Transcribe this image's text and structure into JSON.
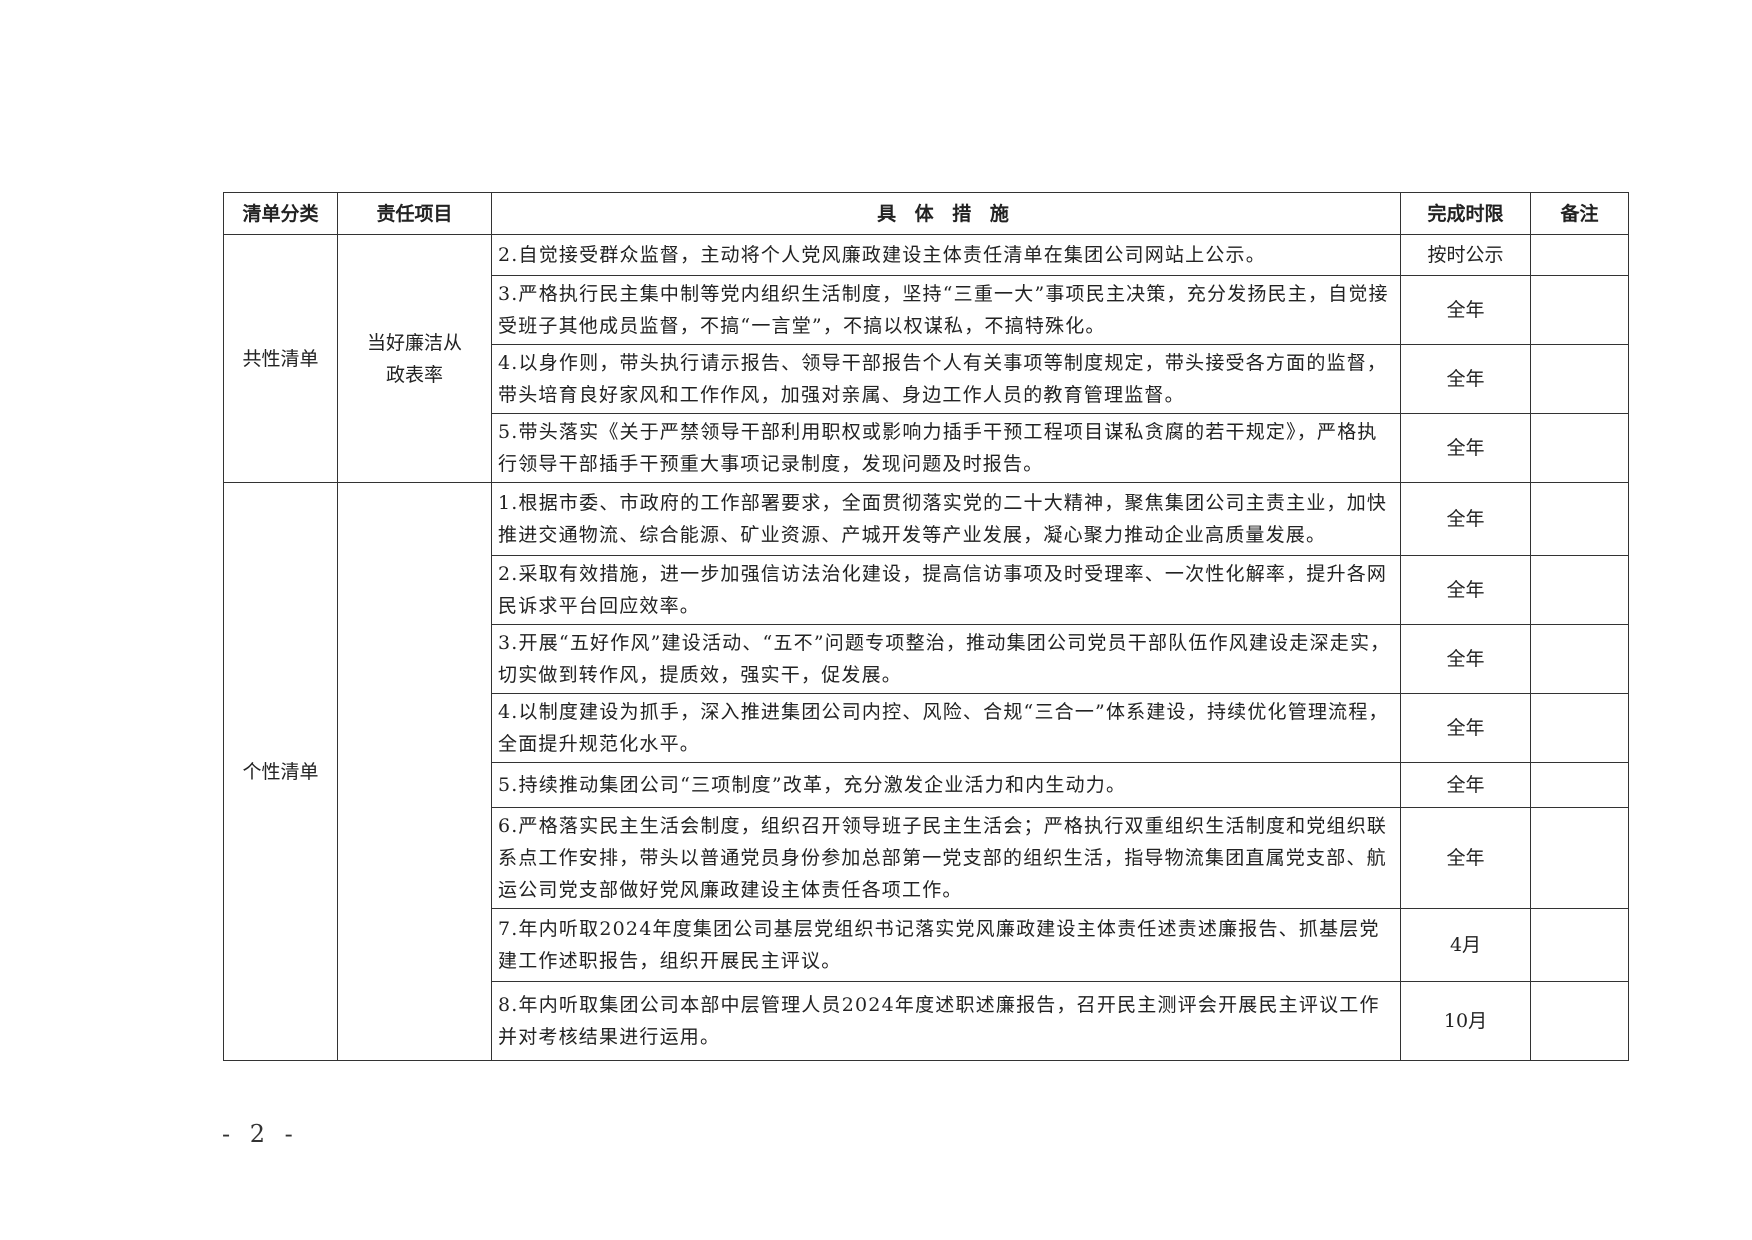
{
  "table": {
    "headers": [
      "清单分类",
      "责任项目",
      "具 体 措 施",
      "完成时限",
      "备注"
    ],
    "groups": [
      {
        "category": "共性清单",
        "project": "当好廉洁从政表率",
        "rows": [
          {
            "measure": "2.自觉接受群众监督，主动将个人党风廉政建设主体责任清单在集团公司网站上公示。",
            "deadline": "按时公示",
            "note": ""
          },
          {
            "measure": "3.严格执行民主集中制等党内组织生活制度，坚持“三重一大”事项民主决策，充分发扬民主，自觉接受班子其他成员监督，不搞“一言堂”，不搞以权谋私，不搞特殊化。",
            "deadline": "全年",
            "note": ""
          },
          {
            "measure": "4.以身作则，带头执行请示报告、领导干部报告个人有关事项等制度规定，带头接受各方面的监督，带头培育良好家风和工作作风，加强对亲属、身边工作人员的教育管理监督。",
            "deadline": "全年",
            "note": ""
          },
          {
            "measure": "5.带头落实《关于严禁领导干部利用职权或影响力插手干预工程项目谋私贪腐的若干规定》，严格执行领导干部插手干预重大事项记录制度，发现问题及时报告。",
            "deadline": "全年",
            "note": ""
          }
        ]
      },
      {
        "category": "个性清单",
        "project": "",
        "rows": [
          {
            "measure": "1.根据市委、市政府的工作部署要求，全面贯彻落实党的二十大精神，聚焦集团公司主责主业，加快推进交通物流、综合能源、矿业资源、产城开发等产业发展，凝心聚力推动企业高质量发展。",
            "deadline": "全年",
            "note": ""
          },
          {
            "measure": "2.采取有效措施，进一步加强信访法治化建设，提高信访事项及时受理率、一次性化解率，提升各网民诉求平台回应效率。",
            "deadline": "全年",
            "note": ""
          },
          {
            "measure": "3.开展“五好作风”建设活动、“五不”问题专项整治，推动集团公司党员干部队伍作风建设走深走实，切实做到转作风，提质效，强实干，促发展。",
            "deadline": "全年",
            "note": ""
          },
          {
            "measure": "4.以制度建设为抓手，深入推进集团公司内控、风险、合规“三合一”体系建设，持续优化管理流程，全面提升规范化水平。",
            "deadline": "全年",
            "note": ""
          },
          {
            "measure": "5.持续推动集团公司“三项制度”改革，充分激发企业活力和内生动力。",
            "deadline": "全年",
            "note": ""
          },
          {
            "measure": "6.严格落实民主生活会制度，组织召开领导班子民主生活会；严格执行双重组织生活制度和党组织联系点工作安排，带头以普通党员身份参加总部第一党支部的组织生活，指导物流集团直属党支部、航运公司党支部做好党风廉政建设主体责任各项工作。",
            "deadline": "全年",
            "note": ""
          },
          {
            "measure": "7.年内听取2024年度集团公司基层党组织书记落实党风廉政建设主体责任述责述廉报告、抓基层党建工作述职报告，组织开展民主评议。",
            "deadline": "4月",
            "note": ""
          },
          {
            "measure": "8.年内听取集团公司本部中层管理人员2024年度述职述廉报告，召开民主测评会开展民主评议工作并对考核结果进行运用。",
            "deadline": "10月",
            "note": ""
          }
        ]
      }
    ]
  },
  "page_number": "- 2 -"
}
